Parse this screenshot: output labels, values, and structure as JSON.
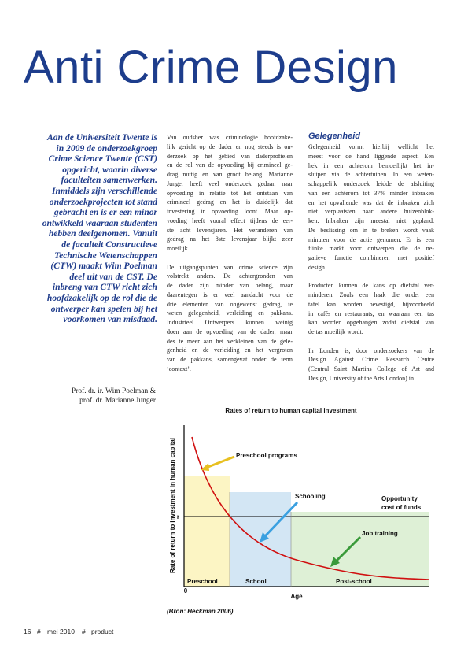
{
  "header": {
    "title": "Anti Crime Design"
  },
  "intro": {
    "lines": [
      "Aan de Universiteit Twente is",
      "in 2009 de onderzoekgroep",
      "Crime Science Twente (CST)",
      "opgericht, waarin diverse",
      "faculteiten samenwerken.",
      "Inmiddels zijn verschillende",
      "onderzoekprojecten tot stand",
      "gebracht en is er een minor",
      "ontwikkeld waaraan studenten",
      "hebben deelgenomen. Vanuit",
      "de faculteit Constructieve",
      "Technische Wetenschappen",
      "(CTW) maakt Wim Poelman",
      "deel uit van de CST. De",
      "inbreng van CTW richt zich",
      "hoofdzakelijk op de rol die de",
      "ontwerper kan spelen bij het",
      "voorkomen van misdaad."
    ]
  },
  "authors": [
    "Prof. dr. ir. Wim Poelman &",
    "prof. dr. Marianne Junger"
  ],
  "column_2": {
    "paragraphs": [
      [
        "Van oudsher was criminologie hoofdzake-",
        "lijk gericht op de dader en nog steeds is on-",
        "derzoek op het gebied van daderprofielen",
        "en de rol van de opvoeding bij crimineel ge-",
        "drag nuttig en van groot belang. Marianne",
        "Junger heeft veel onderzoek gedaan naar",
        "opvoeding in relatie tot het ontstaan van",
        "crimineel gedrag en het is duidelijk dat",
        "investering in opvoeding loont. Maar op-",
        "voeding heeft vooral effect tijdens de eer-",
        "ste acht levensjaren. Het veranderen van",
        "gedrag na het 8ste levensjaar blijkt zeer",
        "moeilijk."
      ],
      [
        "De uitgangspunten van crime science zijn",
        "volstrekt anders. De achtergronden van",
        "de dader zijn minder van belang, maar",
        "daarentegen is er veel aandacht voor de",
        "drie elementen van ongewenst gedrag, te",
        "weten gelegenheid, verleiding en pakkans.",
        "Industrieel Ontwerpers kunnen weinig",
        "doen aan de opvoeding van de dader, maar",
        "des te meer aan het verkleinen van de gele-",
        "genheid en de verleiding en het vergroten",
        "van de pakkans, samengevat onder de term",
        "‘context’."
      ]
    ]
  },
  "column_3": {
    "heading": "Gelegenheid",
    "paragraphs": [
      [
        "Gelegenheid vormt hierbij wellicht het",
        "meest voor de hand liggende aspect. Een",
        "hek in een achterom bemoeilijkt het in-",
        "sluipen via de achtertuinen. In een weten-",
        "schappelijk onderzoek leidde de afsluiting",
        "van een achterom tot 37% minder inbraken",
        "en het opvallende was dat de inbraken zich",
        "niet verplaatsten naar andere huizenblok-",
        "ken. Inbraken zijn meestal niet gepland.",
        "De beslissing om in te breken wordt vaak",
        "minuten voor de actie genomen.  Er is een",
        "flinke markt voor ontwerpen die de ne-",
        "gatieve functie combineren met positief",
        "design."
      ],
      [
        "Producten kunnen de kans op diefstal ver-",
        "minderen. Zoals een haak die onder een",
        "tafel kan worden bevestigd, bijvoorbeeld",
        "in cafés en restaurants, en waaraan een tas",
        "kan worden opgehangen zodat diefstal van",
        "de tas moeilijk wordt."
      ],
      [
        "In Londen is, door onderzoekers van de",
        "Design Against Crime Research Centre",
        "(Central Saint Martins College of Art and",
        "Design, University of the Arts London) in"
      ]
    ]
  },
  "figure": {
    "title": "Rates of return to human capital investment",
    "y_label": "Rate of return to investment in human capital",
    "r_label": "r",
    "origin_label": "0",
    "x_label": "Age",
    "stages": [
      "Preschool",
      "School",
      "Post-school"
    ],
    "annotations": {
      "preschool": "Preschool programs",
      "schooling": "Schooling",
      "opportunity": [
        "Opportunity",
        "cost of funds"
      ],
      "job": "Job training"
    },
    "source": "(Bron: Heckman 2006)"
  },
  "footer": {
    "page": "16",
    "separator": "#",
    "date": "mei 2010",
    "magazine": "product"
  }
}
